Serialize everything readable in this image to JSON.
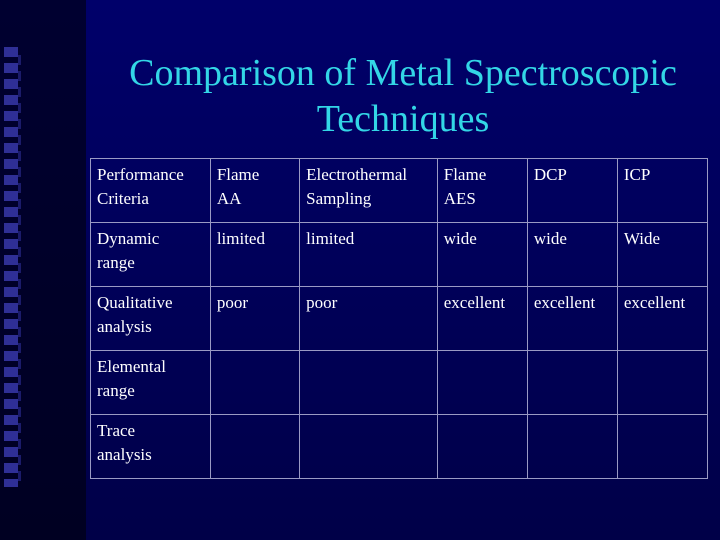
{
  "slide": {
    "title_line1": "Comparison of Metal Spectroscopic",
    "title_line2": "Techniques"
  },
  "table": {
    "rows": [
      [
        [
          "Performance",
          "Criteria"
        ],
        [
          "Flame",
          "AA"
        ],
        [
          "Electrothermal",
          "Sampling"
        ],
        [
          "Flame",
          "AES"
        ],
        [
          "DCP",
          ""
        ],
        [
          "ICP",
          ""
        ]
      ],
      [
        [
          "Dynamic",
          "range"
        ],
        [
          "limited",
          ""
        ],
        [
          "limited",
          ""
        ],
        [
          "wide",
          ""
        ],
        [
          "wide",
          ""
        ],
        [
          "Wide",
          ""
        ]
      ],
      [
        [
          "Qualitative",
          "analysis"
        ],
        [
          "poor",
          ""
        ],
        [
          "poor",
          ""
        ],
        [
          "excellent",
          ""
        ],
        [
          "excellent",
          ""
        ],
        [
          "excellent",
          ""
        ]
      ],
      [
        [
          "Elemental",
          "range"
        ],
        [
          "",
          ""
        ],
        [
          "",
          ""
        ],
        [
          "",
          ""
        ],
        [
          "",
          ""
        ],
        [
          "",
          ""
        ]
      ],
      [
        [
          "Trace",
          "analysis"
        ],
        [
          "",
          ""
        ],
        [
          "",
          ""
        ],
        [
          "",
          ""
        ],
        [
          "",
          ""
        ],
        [
          "",
          ""
        ]
      ]
    ]
  }
}
